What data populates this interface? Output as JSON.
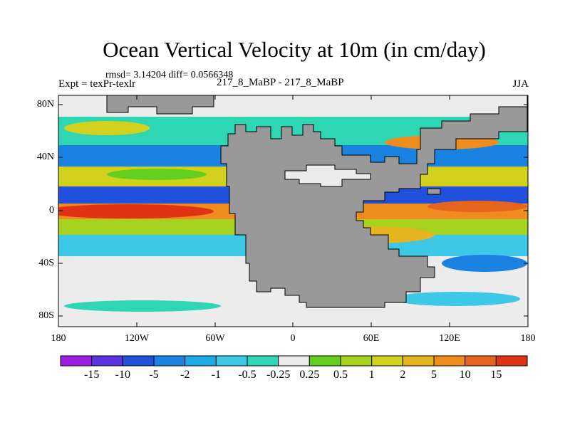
{
  "title": "Ocean Vertical Velocity at 10m (in cm/day)",
  "stats": "rmsd= 3.14204 diff= 0.0566348",
  "experiment": "Expt = texPr-texlr",
  "center_label": "217_8_MaBP - 217_8_MaBP",
  "season": "JJA",
  "lat_labels": [
    "80N",
    "40N",
    "0",
    "40S",
    "80S"
  ],
  "lon_labels": [
    "180",
    "120W",
    "60W",
    "0",
    "60E",
    "120E",
    "180"
  ],
  "colorbar": {
    "labels": [
      "-15",
      "-10",
      "-5",
      "-2",
      "-1",
      "-0.5",
      "-0.25",
      "0.25",
      "0.5",
      "1",
      "2",
      "5",
      "10",
      "15"
    ],
    "colors": [
      "#9f1ee6",
      "#5a32e0",
      "#2050dc",
      "#1a82e0",
      "#1eaae6",
      "#3cc8e6",
      "#2ed6b4",
      "#ececec",
      "#64d01e",
      "#a5d21e",
      "#d2d21e",
      "#e6b41e",
      "#ee8c1e",
      "#e6641e",
      "#e03214"
    ]
  },
  "land_color": "#999999"
}
